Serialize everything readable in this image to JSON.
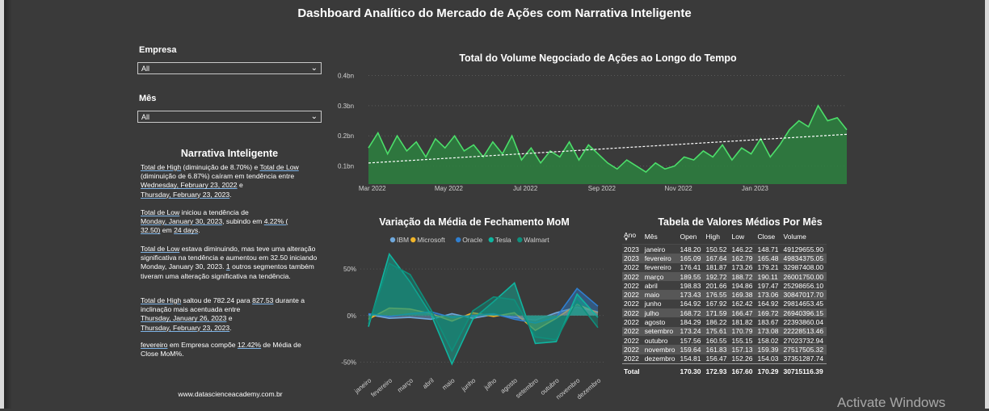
{
  "title": "Dashboard Analítico do Mercado de Ações com Narrativa Inteligente",
  "filters": {
    "empresa": {
      "label": "Empresa",
      "value": "All"
    },
    "mes": {
      "label": "Mês",
      "value": "All"
    }
  },
  "narrative": {
    "title": "Narrativa Inteligente",
    "p1": {
      "a": "Total de High",
      "b": " (diminuição de 8.70%) e ",
      "c": "Total de Low",
      "d": " (diminuição de 6.87%) caíram em tendência entre ",
      "e": "Wednesday, February 23, 2022",
      "f": " e ",
      "g": "Thursday, February 23, 2023",
      "h": "."
    },
    "p2": {
      "a": "Total de Low",
      "b": " iniciou a tendência de ",
      "c": "Monday, January 30, 2023",
      "d": ", subindo em ",
      "e": "4.22% (",
      "f": "32.50)",
      "g": " em ",
      "h": "24 days",
      "i": "."
    },
    "p3": {
      "a": "Total de Low",
      "b": " estava diminuindo, mas teve uma alteração significativa na tendência e aumentou em 32.50 iniciando Monday, January 30, 2023. ",
      "c": "1",
      "d": " outros segmentos também tiveram uma alteração significativa na tendência."
    },
    "p4": {
      "a": "Total de High",
      "b": " saltou de 782.24 para ",
      "c": "827.53",
      "d": " durante a inclinação mais acentuada entre ",
      "e": "Thursday, January 26, 2023",
      "f": " e ",
      "g": "Thursday, February 23, 2023",
      "h": "."
    },
    "p5": {
      "a": "fevereiro",
      "b": " em Empresa  compõe ",
      "c": "12.42%",
      "d": " de Média de Close MoM%."
    },
    "footer": "www.datascienceacademy.com.br"
  },
  "volume_chart_title": "Total do Volume Negociado de Ações ao Longo do Tempo",
  "mom_chart_title": "Variação da Média de Fechamento MoM",
  "table_title": "Tabela de Valores Médios Por Mês",
  "chart_data": [
    {
      "type": "area",
      "title": "Total do Volume Negociado de Ações ao Longo do Tempo",
      "x_tick_labels": [
        "Mar 2022",
        "May 2022",
        "Jul 2022",
        "Sep 2022",
        "Nov 2022",
        "Jan 2023"
      ],
      "y_tick_labels": [
        "0.1bn",
        "0.2bn",
        "0.3bn",
        "0.4bn"
      ],
      "y_ticks": [
        0.1,
        0.2,
        0.3,
        0.4
      ],
      "ylim": [
        0.04,
        0.42
      ],
      "x_range_months": [
        0,
        12.5
      ],
      "trendline": {
        "start": 0.11,
        "end": 0.205
      },
      "points_month": [
        0,
        0.25,
        0.5,
        0.75,
        1,
        1.25,
        1.5,
        1.75,
        2,
        2.25,
        2.5,
        2.75,
        3,
        3.25,
        3.5,
        3.75,
        4,
        4.25,
        4.5,
        4.75,
        5,
        5.25,
        5.5,
        5.75,
        6,
        6.25,
        6.5,
        6.75,
        7,
        7.25,
        7.5,
        7.75,
        8,
        8.25,
        8.5,
        8.75,
        9,
        9.25,
        9.5,
        9.75,
        10,
        10.25,
        10.5,
        10.75,
        11,
        11.25,
        11.5,
        11.75,
        12,
        12.25,
        12.5
      ],
      "points_volume": [
        0.16,
        0.21,
        0.14,
        0.2,
        0.15,
        0.18,
        0.13,
        0.19,
        0.16,
        0.2,
        0.15,
        0.17,
        0.13,
        0.18,
        0.14,
        0.2,
        0.12,
        0.16,
        0.11,
        0.15,
        0.13,
        0.18,
        0.12,
        0.17,
        0.14,
        0.11,
        0.09,
        0.12,
        0.1,
        0.08,
        0.11,
        0.09,
        0.1,
        0.13,
        0.12,
        0.15,
        0.13,
        0.17,
        0.12,
        0.16,
        0.14,
        0.19,
        0.13,
        0.17,
        0.22,
        0.25,
        0.23,
        0.3,
        0.25,
        0.26,
        0.22
      ]
    },
    {
      "type": "line",
      "title": "Variação da Média de Fechamento MoM",
      "categories": [
        "janeiro",
        "fevereiro",
        "março",
        "abril",
        "maio",
        "junho",
        "julho",
        "agosto",
        "setembro",
        "outubro",
        "novembro",
        "dezembro"
      ],
      "y_tick_labels": [
        "50%",
        "0%",
        "-50%"
      ],
      "ylim": [
        -60,
        70
      ],
      "series": [
        {
          "name": "IBM",
          "color": "#6fa8dc",
          "values": [
            1,
            -3,
            -2,
            -4,
            2,
            -3,
            1,
            -2,
            -5,
            3,
            9,
            4
          ]
        },
        {
          "name": "Microsoft",
          "color": "#f0b429",
          "values": [
            -4,
            8,
            7,
            2,
            -6,
            3,
            -1,
            3,
            -16,
            -3,
            12,
            3
          ]
        },
        {
          "name": "Oracle",
          "color": "#2f7fd0",
          "values": [
            2,
            -1,
            2,
            4,
            -2,
            0,
            2,
            -4,
            -8,
            -2,
            29,
            10
          ]
        },
        {
          "name": "Tesla",
          "color": "#0fb5a0",
          "values": [
            -12,
            66,
            36,
            1,
            -52,
            -4,
            15,
            35,
            -30,
            -28,
            23,
            -2
          ]
        },
        {
          "name": "Walmart",
          "color": "#0f8f7c",
          "values": [
            -9,
            56,
            44,
            6,
            -38,
            5,
            20,
            17,
            -23,
            -26,
            16,
            -13
          ]
        }
      ]
    },
    {
      "type": "table",
      "title": "Tabela de Valores Médios Por Mês",
      "columns": [
        "Ano",
        "Mês",
        "Open",
        "High",
        "Low",
        "Close",
        "Volume"
      ],
      "rows": [
        [
          "2023",
          "janeiro",
          "148.20",
          "150.52",
          "146.22",
          "148.71",
          "49129655.90"
        ],
        [
          "2023",
          "fevereiro",
          "165.09",
          "167.64",
          "162.79",
          "165.48",
          "49834375.05"
        ],
        [
          "2022",
          "fevereiro",
          "176.41",
          "181.87",
          "173.26",
          "179.21",
          "32987408.00"
        ],
        [
          "2022",
          "março",
          "189.55",
          "192.72",
          "188.72",
          "190.11",
          "26001750.00"
        ],
        [
          "2022",
          "abril",
          "198.83",
          "201.66",
          "194.86",
          "197.47",
          "25298656.10"
        ],
        [
          "2022",
          "maio",
          "173.43",
          "176.55",
          "169.38",
          "173.06",
          "30847017.70"
        ],
        [
          "2022",
          "junho",
          "164.92",
          "167.92",
          "162.42",
          "164.92",
          "29814653.45"
        ],
        [
          "2022",
          "julho",
          "168.72",
          "171.59",
          "166.47",
          "169.72",
          "26940396.15"
        ],
        [
          "2022",
          "agosto",
          "184.29",
          "186.22",
          "181.82",
          "183.67",
          "22393860.04"
        ],
        [
          "2022",
          "setembro",
          "173.24",
          "175.61",
          "170.79",
          "173.08",
          "22228513.46"
        ],
        [
          "2022",
          "outubro",
          "157.56",
          "160.55",
          "155.15",
          "158.02",
          "27023732.94"
        ],
        [
          "2022",
          "novembro",
          "159.64",
          "161.83",
          "157.13",
          "159.39",
          "27517505.32"
        ],
        [
          "2022",
          "dezembro",
          "154.81",
          "156.47",
          "152.26",
          "154.03",
          "37351287.74"
        ]
      ],
      "total": [
        "Total",
        "",
        "170.30",
        "172.93",
        "167.60",
        "170.29",
        "30715116.39"
      ]
    }
  ],
  "watermark": "Activate Windows",
  "colors": {
    "background": "#3a3a3a",
    "volume_line": "#4cde6a",
    "volume_area": "#2e7d3f",
    "trend": "#ffffff"
  }
}
